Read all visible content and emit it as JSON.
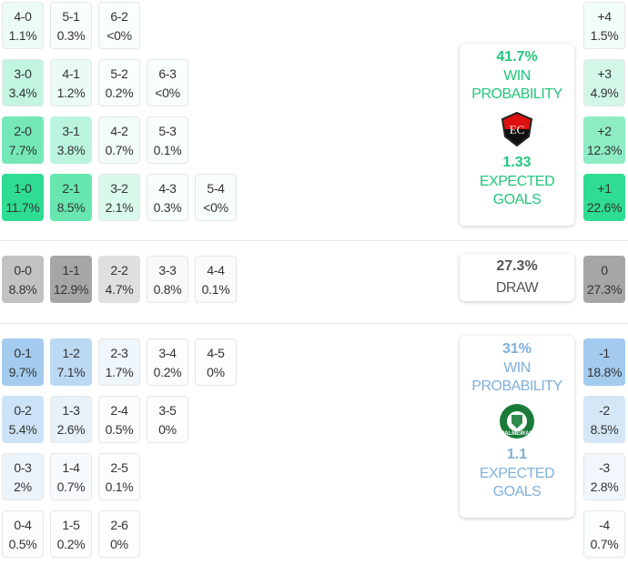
{
  "colors": {
    "home": "#2edc92",
    "draw": "#a6a6a6",
    "away": "#a3cbee",
    "home_text": "#22c77a",
    "away_text": "#7fb0dc",
    "draw_text": "#555555"
  },
  "home": {
    "grid": [
      [
        {
          "s": "4-0",
          "p": "1.1%"
        },
        {
          "s": "5-1",
          "p": "0.3%"
        },
        {
          "s": "6-2",
          "p": "<0%"
        }
      ],
      [
        {
          "s": "3-0",
          "p": "3.4%"
        },
        {
          "s": "4-1",
          "p": "1.2%"
        },
        {
          "s": "5-2",
          "p": "0.2%"
        },
        {
          "s": "6-3",
          "p": "<0%"
        }
      ],
      [
        {
          "s": "2-0",
          "p": "7.7%"
        },
        {
          "s": "3-1",
          "p": "3.8%"
        },
        {
          "s": "4-2",
          "p": "0.7%"
        },
        {
          "s": "5-3",
          "p": "0.1%"
        }
      ],
      [
        {
          "s": "1-0",
          "p": "11.7%"
        },
        {
          "s": "2-1",
          "p": "8.5%"
        },
        {
          "s": "3-2",
          "p": "2.1%"
        },
        {
          "s": "4-3",
          "p": "0.3%"
        },
        {
          "s": "5-4",
          "p": "<0%"
        }
      ]
    ],
    "margins": [
      {
        "s": "+4",
        "p": "1.5%"
      },
      {
        "s": "+3",
        "p": "4.9%"
      },
      {
        "s": "+2",
        "p": "12.3%"
      },
      {
        "s": "+1",
        "p": "22.6%"
      }
    ],
    "win_pct": "41.7%",
    "win_label": "WIN PROBABILITY",
    "xg": "1.33",
    "xg_label": "EXPECTED GOALS",
    "crest": "vitoria-crest"
  },
  "draw": {
    "grid": [
      [
        {
          "s": "0-0",
          "p": "8.8%"
        },
        {
          "s": "1-1",
          "p": "12.9%"
        },
        {
          "s": "2-2",
          "p": "4.7%"
        },
        {
          "s": "3-3",
          "p": "0.8%"
        },
        {
          "s": "4-4",
          "p": "0.1%"
        }
      ]
    ],
    "margins": [
      {
        "s": "0",
        "p": "27.3%"
      }
    ],
    "pct": "27.3%",
    "label": "DRAW"
  },
  "away": {
    "grid": [
      [
        {
          "s": "0-1",
          "p": "9.7%"
        },
        {
          "s": "1-2",
          "p": "7.1%"
        },
        {
          "s": "2-3",
          "p": "1.7%"
        },
        {
          "s": "3-4",
          "p": "0.2%"
        },
        {
          "s": "4-5",
          "p": "0%"
        }
      ],
      [
        {
          "s": "0-2",
          "p": "5.4%"
        },
        {
          "s": "1-3",
          "p": "2.6%"
        },
        {
          "s": "2-4",
          "p": "0.5%"
        },
        {
          "s": "3-5",
          "p": "0%"
        }
      ],
      [
        {
          "s": "0-3",
          "p": "2%"
        },
        {
          "s": "1-4",
          "p": "0.7%"
        },
        {
          "s": "2-5",
          "p": "0.1%"
        }
      ],
      [
        {
          "s": "0-4",
          "p": "0.5%"
        },
        {
          "s": "1-5",
          "p": "0.2%"
        },
        {
          "s": "2-6",
          "p": "0%"
        }
      ]
    ],
    "margins": [
      {
        "s": "-1",
        "p": "18.8%"
      },
      {
        "s": "-2",
        "p": "8.5%"
      },
      {
        "s": "-3",
        "p": "2.8%"
      },
      {
        "s": "-4",
        "p": "0.7%"
      }
    ],
    "win_pct": "31%",
    "win_label": "WIN PROBABILITY",
    "xg": "1.1",
    "xg_label": "EXPECTED GOALS",
    "crest": "palmeiras-crest"
  }
}
